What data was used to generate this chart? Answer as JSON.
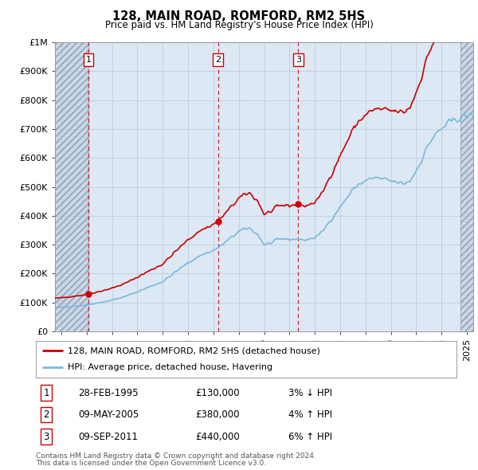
{
  "title": "128, MAIN ROAD, ROMFORD, RM2 5HS",
  "subtitle": "Price paid vs. HM Land Registry's House Price Index (HPI)",
  "legend_label1": "128, MAIN ROAD, ROMFORD, RM2 5HS (detached house)",
  "legend_label2": "HPI: Average price, detached house, Havering",
  "footer1": "Contains HM Land Registry data © Crown copyright and database right 2024.",
  "footer2": "This data is licensed under the Open Government Licence v3.0.",
  "transactions": [
    {
      "num": 1,
      "date": "28-FEB-1995",
      "price": 130000,
      "hpi_pct": "3%",
      "direction": "↓"
    },
    {
      "num": 2,
      "date": "09-MAY-2005",
      "price": 380000,
      "hpi_pct": "4%",
      "direction": "↑"
    },
    {
      "num": 3,
      "date": "09-SEP-2011",
      "price": 440000,
      "hpi_pct": "6%",
      "direction": "↑"
    }
  ],
  "transaction_years": [
    1995.15,
    2005.36,
    2011.69
  ],
  "transaction_prices": [
    130000,
    380000,
    440000
  ],
  "ylim": [
    0,
    1000000
  ],
  "yticks": [
    0,
    100000,
    200000,
    300000,
    400000,
    500000,
    600000,
    700000,
    800000,
    900000,
    1000000
  ],
  "ytick_labels": [
    "£0",
    "£100K",
    "£200K",
    "£300K",
    "£400K",
    "£500K",
    "£600K",
    "£700K",
    "£800K",
    "£900K",
    "£1M"
  ],
  "xlim_start": 1992.5,
  "xlim_end": 2025.5,
  "hpi_color": "#7ab8dc",
  "price_color": "#cc0000",
  "hatch_color": "#c8d8e8",
  "bg_color": "#dce8f4",
  "grid_color": "#b8c8d8",
  "hatch_left_end": 1995.15,
  "hatch_right_start": 2024.5
}
